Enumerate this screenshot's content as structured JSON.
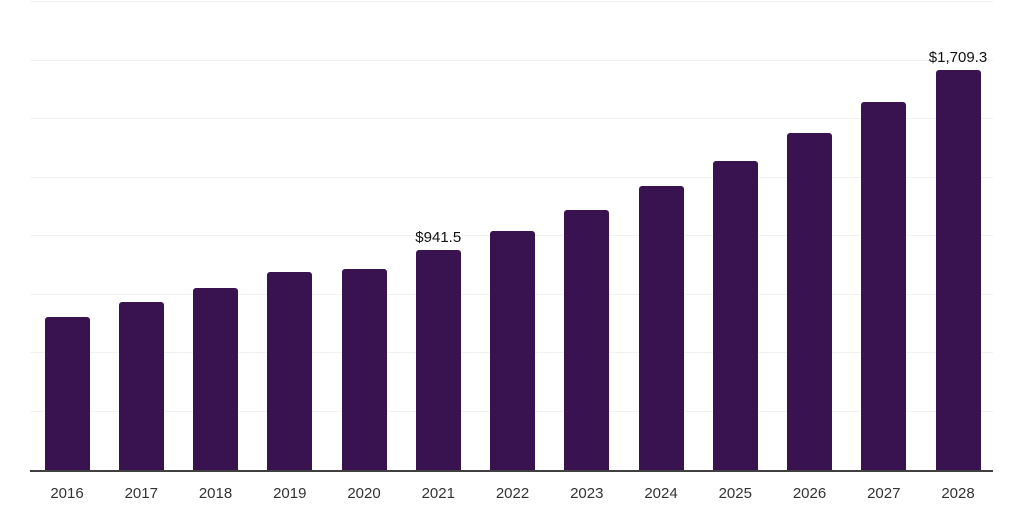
{
  "chart_data": {
    "type": "bar",
    "title": "",
    "xlabel": "",
    "ylabel": "",
    "categories": [
      "2016",
      "2017",
      "2018",
      "2019",
      "2020",
      "2021",
      "2022",
      "2023",
      "2024",
      "2025",
      "2026",
      "2027",
      "2028"
    ],
    "values": [
      655,
      718,
      776,
      846,
      858,
      941.5,
      1022,
      1113,
      1212,
      1320,
      1439,
      1571,
      1709.3
    ],
    "value_labels": [
      {
        "category": "2021",
        "text": "$941.5"
      },
      {
        "category": "2028",
        "text": "$1,709.3"
      }
    ],
    "ylim": [
      0,
      2000
    ],
    "grid_step": 250,
    "grid": true,
    "legend": false,
    "colors": {
      "bar": "#39134F",
      "gridline": "#F2F2F2",
      "axis_line": "#404040",
      "value_label": "#111111",
      "tick_label": "#333333"
    }
  }
}
